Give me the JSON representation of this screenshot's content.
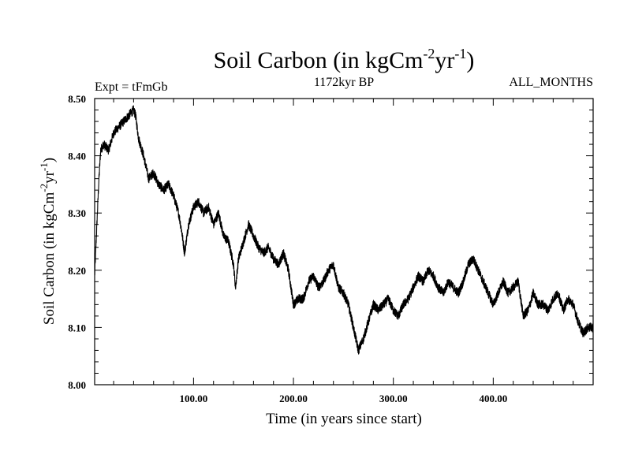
{
  "chart_data": {
    "type": "line",
    "title": "Soil Carbon (in kgCm",
    "title_sup1": "-2",
    "title_mid": "yr",
    "title_sup2": "-1",
    "title_end": ")",
    "left_subtitle": "Expt = tFmGb",
    "center_subtitle": "1172kyr BP",
    "right_subtitle": "ALL_MONTHS",
    "xlabel": "Time (in years since start)",
    "ylabel": "Soil Carbon (in kgCm",
    "ylabel_sup1": "-2",
    "ylabel_mid": "yr",
    "ylabel_sup2": "-1",
    "ylabel_end": ")",
    "xlim": [
      1,
      500
    ],
    "ylim": [
      8.0,
      8.5
    ],
    "x_ticks": [
      100,
      200,
      300,
      400
    ],
    "x_tick_labels": [
      "100.00",
      "200.00",
      "300.00",
      "400.00"
    ],
    "y_ticks": [
      8.0,
      8.1,
      8.2,
      8.3,
      8.4,
      8.5
    ],
    "y_tick_labels": [
      "8.00",
      "8.10",
      "8.20",
      "8.30",
      "8.40",
      "8.50"
    ],
    "grid": false,
    "line_color": "#000000",
    "noise_amplitude": 0.008,
    "series": [
      {
        "x": [
          1,
          3,
          5,
          7,
          10,
          15,
          20,
          25,
          30,
          35,
          40,
          42,
          45,
          50,
          55,
          60,
          65,
          70,
          75,
          80,
          85,
          88,
          91,
          95,
          100,
          105,
          110,
          115,
          120,
          125,
          130,
          135,
          140,
          142,
          145,
          150,
          155,
          160,
          165,
          170,
          175,
          180,
          185,
          190,
          195,
          200,
          205,
          210,
          215,
          220,
          225,
          230,
          235,
          240,
          245,
          250,
          255,
          260,
          265,
          270,
          275,
          280,
          285,
          290,
          295,
          300,
          305,
          310,
          315,
          320,
          325,
          330,
          335,
          340,
          345,
          350,
          355,
          360,
          365,
          370,
          375,
          380,
          385,
          390,
          395,
          400,
          405,
          410,
          415,
          420,
          425,
          430,
          435,
          440,
          445,
          450,
          455,
          460,
          465,
          470,
          475,
          480,
          485,
          490,
          495,
          500
        ],
        "y": [
          8.19,
          8.27,
          8.35,
          8.41,
          8.42,
          8.41,
          8.44,
          8.45,
          8.46,
          8.47,
          8.48,
          8.47,
          8.43,
          8.4,
          8.36,
          8.37,
          8.35,
          8.34,
          8.35,
          8.33,
          8.3,
          8.27,
          8.23,
          8.28,
          8.31,
          8.32,
          8.3,
          8.31,
          8.28,
          8.3,
          8.26,
          8.25,
          8.21,
          8.17,
          8.22,
          8.25,
          8.28,
          8.26,
          8.24,
          8.23,
          8.24,
          8.22,
          8.21,
          8.23,
          8.2,
          8.14,
          8.15,
          8.15,
          8.18,
          8.19,
          8.17,
          8.18,
          8.2,
          8.21,
          8.17,
          8.16,
          8.14,
          8.1,
          8.06,
          8.08,
          8.11,
          8.14,
          8.13,
          8.14,
          8.15,
          8.13,
          8.12,
          8.14,
          8.15,
          8.17,
          8.19,
          8.18,
          8.2,
          8.19,
          8.17,
          8.16,
          8.18,
          8.17,
          8.16,
          8.18,
          8.21,
          8.22,
          8.2,
          8.18,
          8.16,
          8.14,
          8.16,
          8.18,
          8.16,
          8.17,
          8.18,
          8.12,
          8.13,
          8.16,
          8.14,
          8.14,
          8.13,
          8.15,
          8.16,
          8.13,
          8.15,
          8.14,
          8.11,
          8.09,
          8.1,
          8.1
        ]
      }
    ]
  }
}
